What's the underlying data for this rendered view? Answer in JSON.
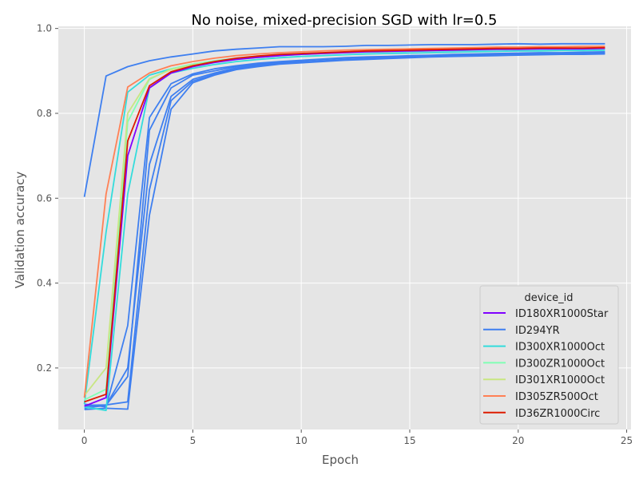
{
  "chart_data": {
    "type": "line",
    "title": "No noise, mixed-precision SGD with lr=0.5",
    "xlabel": "Epoch",
    "ylabel": "Validation accuracy",
    "xlim": [
      -1.2,
      25.2
    ],
    "ylim": [
      0.055,
      1.005
    ],
    "xticks": [
      0,
      5,
      10,
      15,
      20,
      25
    ],
    "xtick_labels": [
      "0",
      "5",
      "10",
      "15",
      "20",
      "25"
    ],
    "yticks": [
      0.2,
      0.4,
      0.6,
      0.8,
      1.0
    ],
    "ytick_labels": [
      "0.2",
      "0.4",
      "0.6",
      "0.8",
      "1.0"
    ],
    "grid": true,
    "background": "#e5e5e5",
    "legend": {
      "title": "device_id",
      "placement": "lower-right",
      "entries": [
        {
          "label": "ID180XR1000Star",
          "color": "#8000ff"
        },
        {
          "label": "ID294YR",
          "color": "#3e7ff0"
        },
        {
          "label": "ID300XR1000Oct",
          "color": "#33dcdc"
        },
        {
          "label": "ID300ZR1000Oct",
          "color": "#80ffb4"
        },
        {
          "label": "ID301XR1000Oct",
          "color": "#c8e682"
        },
        {
          "label": "ID305ZR500Oct",
          "color": "#ff8055"
        },
        {
          "label": "ID36ZR1000Circ",
          "color": "#dd1c00"
        }
      ]
    },
    "x": [
      0,
      1,
      2,
      3,
      4,
      5,
      6,
      7,
      8,
      9,
      10,
      11,
      12,
      13,
      14,
      15,
      16,
      17,
      18,
      19,
      20,
      21,
      22,
      23,
      24
    ],
    "series": [
      {
        "color": "#3e7ff0",
        "values": [
          0.603,
          0.888,
          0.91,
          0.924,
          0.933,
          0.94,
          0.947,
          0.951,
          0.954,
          0.957,
          0.957,
          0.957,
          0.958,
          0.96,
          0.96,
          0.961,
          0.962,
          0.962,
          0.962,
          0.963,
          0.964,
          0.963,
          0.964,
          0.964,
          0.964
        ]
      },
      {
        "color": "#3e7ff0",
        "values": [
          0.115,
          0.108,
          0.3,
          0.79,
          0.87,
          0.893,
          0.905,
          0.912,
          0.918,
          0.922,
          0.925,
          0.928,
          0.931,
          0.933,
          0.934,
          0.936,
          0.937,
          0.939,
          0.94,
          0.941,
          0.942,
          0.943,
          0.943,
          0.944,
          0.945
        ]
      },
      {
        "color": "#3e7ff0",
        "values": [
          0.11,
          0.112,
          0.18,
          0.76,
          0.86,
          0.89,
          0.9,
          0.91,
          0.915,
          0.92,
          0.924,
          0.927,
          0.93,
          0.932,
          0.933,
          0.935,
          0.936,
          0.938,
          0.939,
          0.94,
          0.941,
          0.942,
          0.942,
          0.943,
          0.943
        ]
      },
      {
        "color": "#3e7ff0",
        "values": [
          0.105,
          0.112,
          0.2,
          0.68,
          0.84,
          0.88,
          0.895,
          0.907,
          0.913,
          0.918,
          0.921,
          0.924,
          0.927,
          0.929,
          0.931,
          0.933,
          0.935,
          0.936,
          0.937,
          0.938,
          0.939,
          0.94,
          0.941,
          0.941,
          0.942
        ]
      },
      {
        "color": "#3e7ff0",
        "values": [
          0.112,
          0.113,
          0.12,
          0.62,
          0.83,
          0.876,
          0.892,
          0.905,
          0.912,
          0.917,
          0.92,
          0.923,
          0.926,
          0.928,
          0.93,
          0.932,
          0.934,
          0.935,
          0.936,
          0.937,
          0.938,
          0.939,
          0.94,
          0.94,
          0.941
        ]
      },
      {
        "color": "#3e7ff0",
        "values": [
          0.102,
          0.105,
          0.103,
          0.56,
          0.81,
          0.872,
          0.89,
          0.903,
          0.91,
          0.916,
          0.919,
          0.922,
          0.925,
          0.927,
          0.929,
          0.931,
          0.933,
          0.934,
          0.935,
          0.936,
          0.937,
          0.938,
          0.939,
          0.939,
          0.94
        ]
      },
      {
        "color": "#33dcdc",
        "values": [
          0.108,
          0.1,
          0.61,
          0.86,
          0.895,
          0.906,
          0.915,
          0.922,
          0.927,
          0.931,
          0.934,
          0.936,
          0.938,
          0.94,
          0.941,
          0.942,
          0.943,
          0.944,
          0.945,
          0.946,
          0.947,
          0.947,
          0.948,
          0.948,
          0.949
        ]
      },
      {
        "color": "#33dcdc",
        "values": [
          0.115,
          0.52,
          0.85,
          0.89,
          0.905,
          0.915,
          0.922,
          0.928,
          0.932,
          0.936,
          0.939,
          0.941,
          0.943,
          0.944,
          0.945,
          0.946,
          0.947,
          0.948,
          0.949,
          0.95,
          0.951,
          0.951,
          0.952,
          0.952,
          0.953
        ]
      },
      {
        "color": "#80ffb4",
        "values": [
          0.125,
          0.15,
          0.78,
          0.88,
          0.905,
          0.916,
          0.924,
          0.93,
          0.934,
          0.938,
          0.94,
          0.942,
          0.944,
          0.946,
          0.947,
          0.948,
          0.949,
          0.95,
          0.951,
          0.952,
          0.952,
          0.953,
          0.953,
          0.954,
          0.954
        ]
      },
      {
        "color": "#c8e682",
        "values": [
          0.135,
          0.2,
          0.8,
          0.882,
          0.903,
          0.914,
          0.922,
          0.928,
          0.933,
          0.937,
          0.939,
          0.941,
          0.943,
          0.945,
          0.946,
          0.947,
          0.948,
          0.949,
          0.95,
          0.951,
          0.951,
          0.952,
          0.952,
          0.953,
          0.953
        ]
      },
      {
        "color": "#ff8055",
        "values": [
          0.13,
          0.61,
          0.862,
          0.895,
          0.912,
          0.922,
          0.93,
          0.936,
          0.94,
          0.943,
          0.945,
          0.947,
          0.949,
          0.95,
          0.951,
          0.952,
          0.953,
          0.954,
          0.955,
          0.956,
          0.956,
          0.957,
          0.957,
          0.958,
          0.958
        ]
      },
      {
        "color": "#8000ff",
        "values": [
          0.11,
          0.13,
          0.7,
          0.86,
          0.895,
          0.91,
          0.92,
          0.927,
          0.932,
          0.936,
          0.939,
          0.941,
          0.943,
          0.945,
          0.946,
          0.947,
          0.948,
          0.949,
          0.95,
          0.951,
          0.951,
          0.952,
          0.952,
          0.952,
          0.953
        ]
      },
      {
        "color": "#dd1c00",
        "values": [
          0.12,
          0.138,
          0.735,
          0.865,
          0.898,
          0.912,
          0.922,
          0.93,
          0.935,
          0.939,
          0.941,
          0.943,
          0.945,
          0.947,
          0.948,
          0.949,
          0.95,
          0.951,
          0.952,
          0.953,
          0.953,
          0.954,
          0.954,
          0.954,
          0.955
        ]
      }
    ]
  }
}
